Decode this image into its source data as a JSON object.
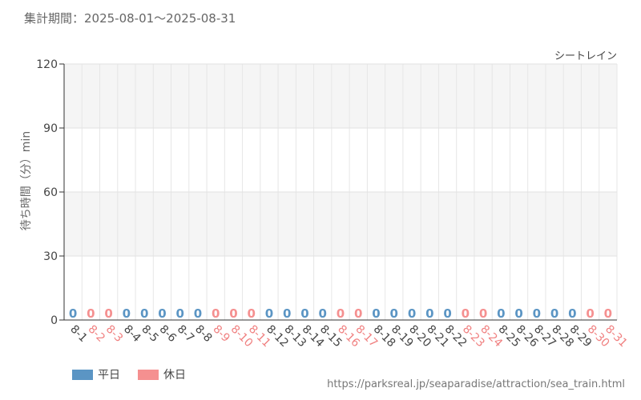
{
  "header": {
    "period_text": "集計期間：2025-08-01～2025-08-31"
  },
  "footer": {
    "source_url": "https://parksreal.jp/seaparadise/attraction/sea_train.html"
  },
  "colors": {
    "weekday": "#5b95c4",
    "holiday": "#f59090",
    "weekday_label": "#444444",
    "holiday_label": "#f08080"
  },
  "chart_data": {
    "type": "bar",
    "series_name": "シートレイン",
    "ylabel": "待ち時間（分）min",
    "ylim": [
      0,
      120
    ],
    "yticks": [
      0,
      30,
      60,
      90,
      120
    ],
    "grid": true,
    "legend_position": "bottom-left",
    "legend": [
      {
        "key": "weekday",
        "label": "平日"
      },
      {
        "key": "holiday",
        "label": "休日"
      }
    ],
    "categories": [
      "8-1",
      "8-2",
      "8-3",
      "8-4",
      "8-5",
      "8-6",
      "8-7",
      "8-8",
      "8-9",
      "8-10",
      "8-11",
      "8-12",
      "8-13",
      "8-14",
      "8-15",
      "8-16",
      "8-17",
      "8-18",
      "8-19",
      "8-20",
      "8-21",
      "8-22",
      "8-23",
      "8-24",
      "8-25",
      "8-26",
      "8-27",
      "8-28",
      "8-29",
      "8-30",
      "8-31"
    ],
    "day_type": [
      "weekday",
      "holiday",
      "holiday",
      "weekday",
      "weekday",
      "weekday",
      "weekday",
      "weekday",
      "holiday",
      "holiday",
      "holiday",
      "weekday",
      "weekday",
      "weekday",
      "weekday",
      "holiday",
      "holiday",
      "weekday",
      "weekday",
      "weekday",
      "weekday",
      "weekday",
      "holiday",
      "holiday",
      "weekday",
      "weekday",
      "weekday",
      "weekday",
      "weekday",
      "holiday",
      "holiday"
    ],
    "values": [
      0,
      0,
      0,
      0,
      0,
      0,
      0,
      0,
      0,
      0,
      0,
      0,
      0,
      0,
      0,
      0,
      0,
      0,
      0,
      0,
      0,
      0,
      0,
      0,
      0,
      0,
      0,
      0,
      0,
      0,
      0
    ]
  }
}
